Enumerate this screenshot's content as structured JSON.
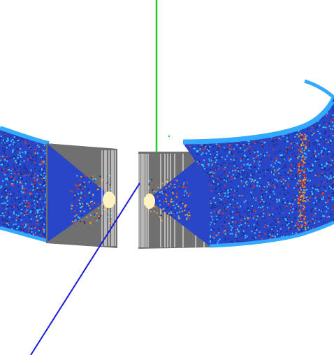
{
  "scene": {
    "background": "#ffffff",
    "colors": {
      "detector_edge": "#33aaff",
      "detector_fill": "#2a46c8",
      "detector_dark": "#1d2f8a",
      "shadow_gray": "#707070",
      "axis_vertical": "#22cc22",
      "axis_beam": "#1a1ad6",
      "hot_spot": "#fff4c0",
      "stripe_white": "#ffffff",
      "speckle_red": "#d8402a",
      "speckle_orange": "#f0a020",
      "speckle_cyan": "#38d0ff"
    }
  }
}
